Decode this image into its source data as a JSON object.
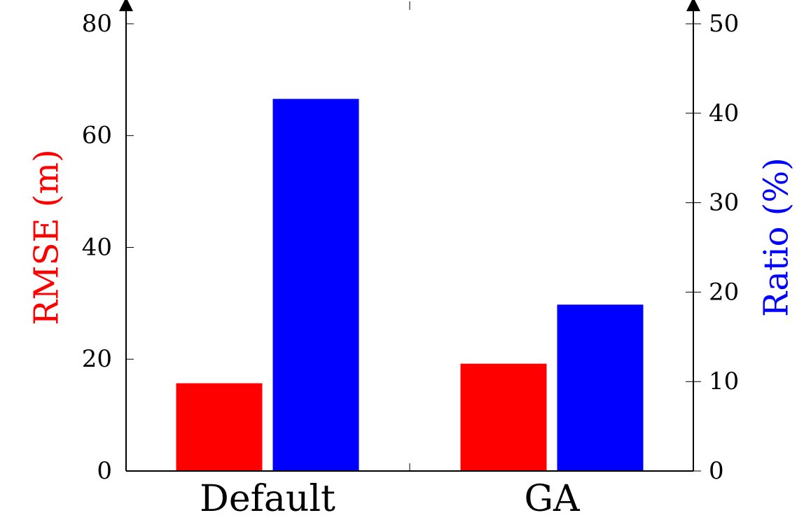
{
  "chart_data": {
    "type": "bar",
    "categories": [
      "Default",
      "GA"
    ],
    "series": [
      {
        "axis": "left",
        "color": "#ff0000",
        "values": [
          15.7,
          19.2
        ]
      },
      {
        "axis": "right",
        "color": "#0000ff",
        "values": [
          41.6,
          18.6
        ]
      }
    ],
    "left_axis": {
      "label": "RMSE (m)",
      "label_color": "#ff0000",
      "ylim": [
        0,
        84
      ],
      "ticks": [
        0,
        20,
        40,
        60,
        80
      ]
    },
    "right_axis": {
      "label": "Ratio (%)",
      "label_color": "#0000ff",
      "ylim": [
        0,
        52.5
      ],
      "ticks": [
        0,
        10,
        20,
        30,
        40,
        50
      ]
    },
    "grid": false,
    "legend": "none"
  }
}
